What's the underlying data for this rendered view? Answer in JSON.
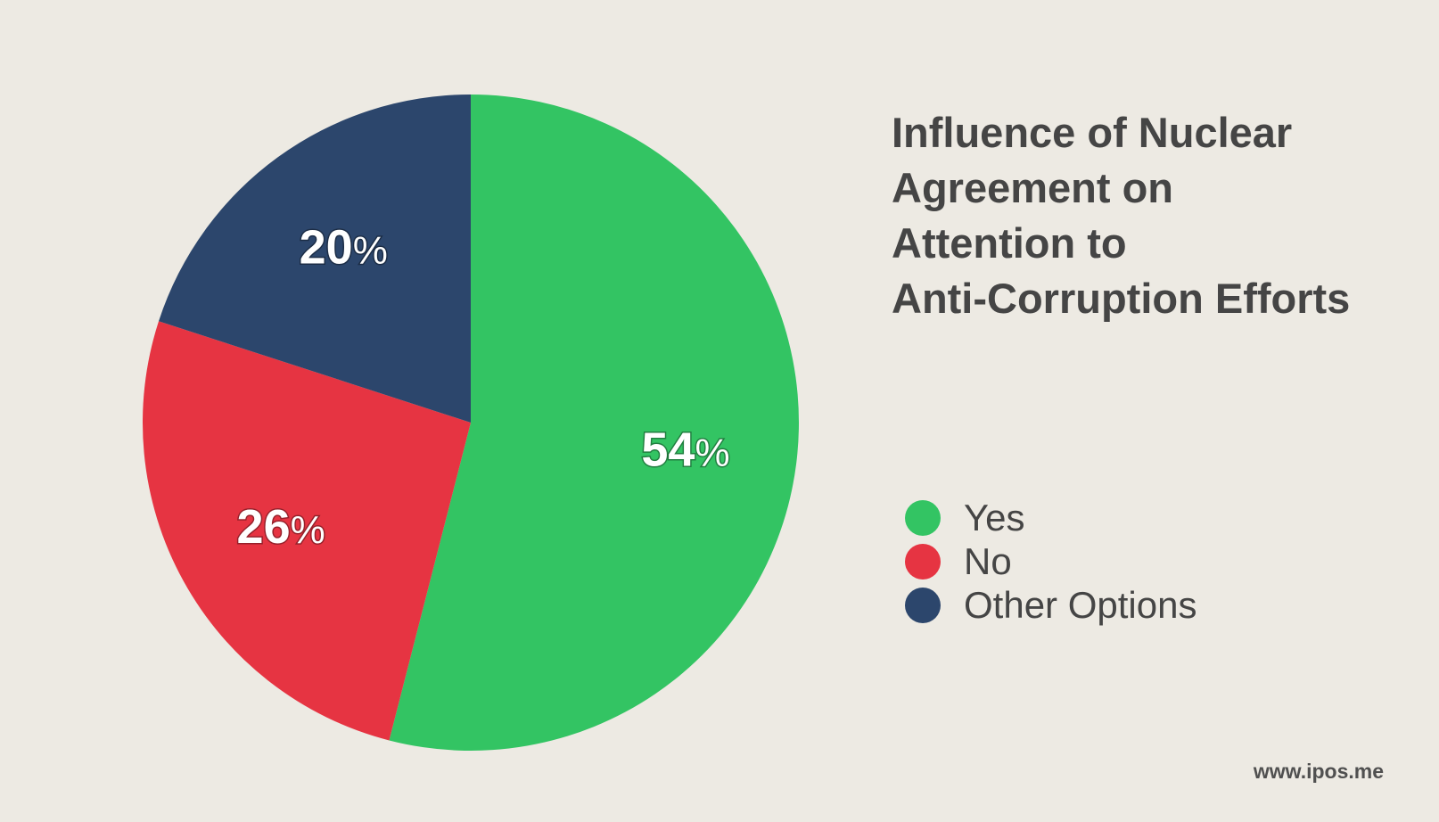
{
  "chart_data": {
    "type": "pie",
    "title": "Influence of Nuclear Agreement on Attention to Anti-Corruption Efforts",
    "title_lines": [
      "Influence of Nuclear",
      "Agreement on",
      "Attention to",
      "Anti-Corruption Efforts"
    ],
    "categories": [
      "Yes",
      "No",
      "Other Options"
    ],
    "values": [
      54,
      26,
      20
    ],
    "value_labels": [
      "54",
      "26",
      "20"
    ],
    "unit": "%",
    "colors": [
      "#33c463",
      "#e63442",
      "#2c466c"
    ],
    "legend": "right",
    "start": "12 o'clock, clockwise"
  },
  "footer": {
    "text": "www.ipos.me"
  }
}
